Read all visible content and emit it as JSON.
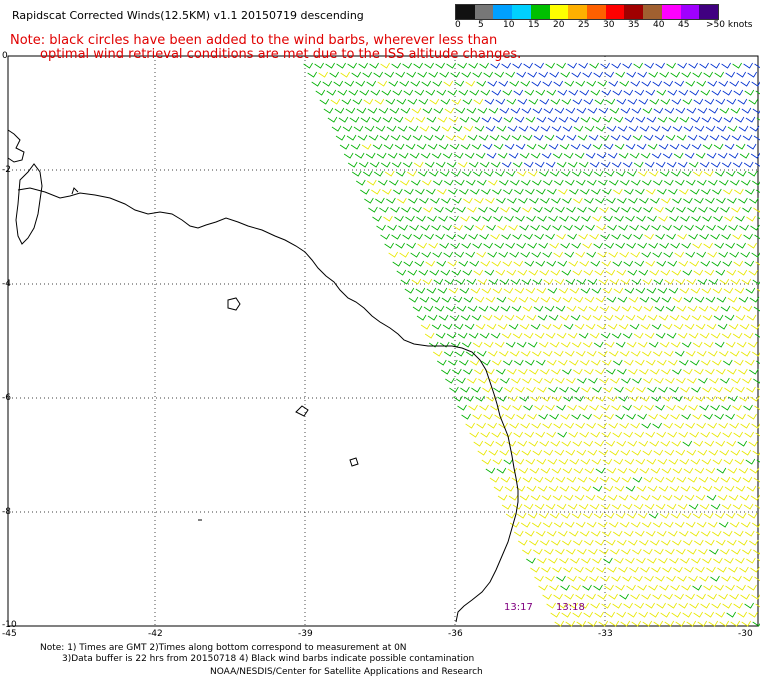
{
  "title": "Rapidscat Corrected Winds(12.5KM) v1.1 20150719 descending",
  "note": {
    "line1": "Note: black circles have been added to the wind barbs, wherever less than",
    "line2": "optimal wind retrieval conditions are met due to the ISS altitude changes."
  },
  "legend": {
    "colors": [
      "#111111",
      "#777777",
      "#00a0ff",
      "#00d0ff",
      "#00c000",
      "#ffff00",
      "#ffb000",
      "#ff6000",
      "#ff0000",
      "#a00000",
      "#a06030",
      "#ff00ff",
      "#a000ff",
      "#400080"
    ],
    "labels": [
      "0",
      "5",
      "10",
      "15",
      "20",
      "25",
      "30",
      "35",
      "40",
      "45",
      ">50 knots"
    ]
  },
  "axes": {
    "lon_labels": [
      "-45",
      "-42",
      "-39",
      "-36",
      "-33",
      "-30"
    ],
    "lat_labels": [
      "0",
      "-2",
      "-4",
      "-6",
      "-8",
      "-10"
    ]
  },
  "times": [
    "13:17",
    "13:18"
  ],
  "footer": {
    "line1": "Note: 1) Times are GMT 2)Times along bottom correspond to measurement at 0N",
    "line2": "3)Data buffer is 22 hrs from 20150718 4) Black wind barbs indicate possible contamination",
    "line3": "NOAA/NESDIS/Center for Satellite Applications and Research"
  }
}
